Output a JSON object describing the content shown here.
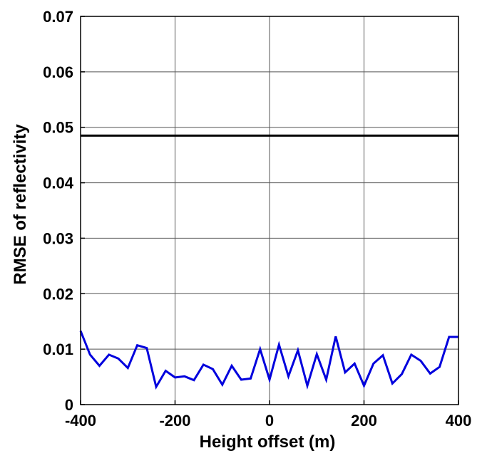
{
  "chart_data": {
    "type": "line",
    "xlabel": "Height offset (m)",
    "ylabel": "RMSE of reflectivity",
    "xlim": [
      -400,
      400
    ],
    "ylim": [
      0,
      0.07
    ],
    "x_ticks": [
      -400,
      -200,
      0,
      200,
      400
    ],
    "x_tick_labels": [
      "-400",
      "-200",
      "0",
      "200",
      "400"
    ],
    "y_ticks": [
      0,
      0.01,
      0.02,
      0.03,
      0.04,
      0.05,
      0.06,
      0.07
    ],
    "y_tick_labels": [
      "0",
      "0.01",
      "0.02",
      "0.03",
      "0.04",
      "0.05",
      "0.06",
      "0.07"
    ],
    "grid": true,
    "series": [
      {
        "color": "#0000dd",
        "x": [
          -400,
          -380,
          -360,
          -340,
          -320,
          -300,
          -280,
          -260,
          -240,
          -220,
          -200,
          -180,
          -160,
          -140,
          -120,
          -100,
          -80,
          -60,
          -40,
          -20,
          0,
          20,
          40,
          60,
          80,
          100,
          120,
          140,
          160,
          180,
          200,
          220,
          240,
          260,
          280,
          300,
          320,
          340,
          360,
          380,
          400
        ],
        "y": [
          0.0133,
          0.009,
          0.007,
          0.009,
          0.0083,
          0.0066,
          0.0107,
          0.0102,
          0.0032,
          0.0061,
          0.0049,
          0.0051,
          0.0044,
          0.0072,
          0.0064,
          0.0036,
          0.007,
          0.0045,
          0.0047,
          0.01,
          0.0045,
          0.0108,
          0.0051,
          0.0098,
          0.0034,
          0.0091,
          0.0045,
          0.0123,
          0.0058,
          0.0074,
          0.0034,
          0.0074,
          0.0089,
          0.0038,
          0.0055,
          0.009,
          0.0079,
          0.0056,
          0.0068,
          0.0122,
          0.0122
        ]
      },
      {
        "color": "#000000",
        "x": [
          -400,
          400
        ],
        "y": [
          0.0485,
          0.0485
        ]
      }
    ]
  }
}
